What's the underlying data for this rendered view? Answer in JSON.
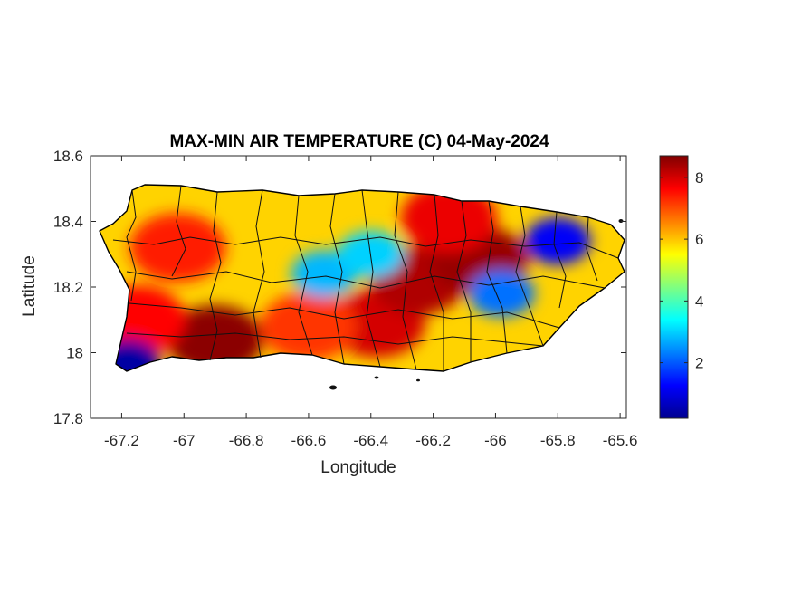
{
  "figure": {
    "title": "MAX-MIN AIR TEMPERATURE (C) 04-May-2024",
    "xlabel": "Longitude",
    "ylabel": "Latitude"
  },
  "axes": {
    "xlim": [
      -67.3,
      -65.58
    ],
    "ylim": [
      17.8,
      18.6
    ],
    "x_ticks": [
      -67.2,
      -67,
      -66.8,
      -66.6,
      -66.4,
      -66.2,
      -66,
      -65.8,
      -65.6
    ],
    "x_tick_labels": [
      "-67.2",
      "-67",
      "-66.8",
      "-66.6",
      "-66.4",
      "-66.2",
      "-66",
      "-65.8",
      "-65.6"
    ],
    "y_ticks": [
      17.8,
      18,
      18.2,
      18.4,
      18.6
    ],
    "y_tick_labels": [
      "17.8",
      "18",
      "18.2",
      "18.4",
      "18.6"
    ]
  },
  "colorbar": {
    "colormap": "jet",
    "range": [
      0.2,
      8.7
    ],
    "ticks": [
      2,
      4,
      6,
      8
    ],
    "tick_labels": [
      "2",
      "4",
      "6",
      "8"
    ],
    "placement": "right"
  },
  "map": {
    "region": "Puerto Rico",
    "variable": "max-min air temperature difference",
    "units": "C",
    "boundaries": "municipality outlines (black)",
    "hotspots": [
      {
        "lon": -66.9,
        "lat": 18.04,
        "value": 8.6
      },
      {
        "lon": -67.15,
        "lat": 18.1,
        "value": 7.6
      },
      {
        "lon": -66.38,
        "lat": 18.09,
        "value": 8.0
      },
      {
        "lon": -66.25,
        "lat": 18.22,
        "value": 8.3
      },
      {
        "lon": -66.05,
        "lat": 18.28,
        "value": 8.5
      },
      {
        "lon": -66.15,
        "lat": 18.41,
        "value": 7.8
      },
      {
        "lon": -66.6,
        "lat": 18.08,
        "value": 7.2
      },
      {
        "lon": -67.02,
        "lat": 18.32,
        "value": 7.4
      }
    ],
    "coldspots": [
      {
        "lon": -65.8,
        "lat": 18.34,
        "value": 1.2
      },
      {
        "lon": -67.18,
        "lat": 17.97,
        "value": 0.5
      },
      {
        "lon": -65.98,
        "lat": 18.18,
        "value": 2.2
      },
      {
        "lon": -66.55,
        "lat": 18.24,
        "value": 2.8
      },
      {
        "lon": -66.4,
        "lat": 18.3,
        "value": 3.0
      }
    ]
  }
}
